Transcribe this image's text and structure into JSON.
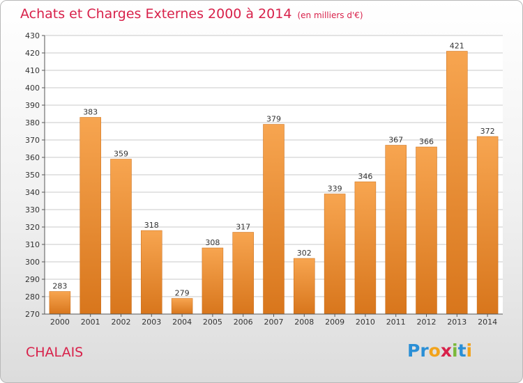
{
  "header": {
    "title": "Achats et Charges Externes 2000 à 2014",
    "subtitle": "(en milliers d'€)"
  },
  "footer": {
    "city": "CHALAIS",
    "logo": {
      "letters": [
        "P",
        "r",
        "o",
        "x",
        "i",
        "t",
        "i"
      ],
      "colors": [
        "#2a8fd6",
        "#2a8fd6",
        "#f2a31b",
        "#d8214a",
        "#7ab83a",
        "#2a8fd6",
        "#f2a31b"
      ]
    }
  },
  "colors": {
    "title": "#d8214a",
    "bar_light": "#f7a550",
    "bar_dark": "#d8761c",
    "grid": "#c8c8c8"
  },
  "chart_data": {
    "type": "bar",
    "title": "Achats et Charges Externes 2000 à 2014",
    "subtitle": "(en milliers d'€)",
    "categories": [
      "2000",
      "2001",
      "2002",
      "2003",
      "2004",
      "2005",
      "2006",
      "2007",
      "2008",
      "2009",
      "2010",
      "2011",
      "2012",
      "2013",
      "2014"
    ],
    "values": [
      283,
      383,
      359,
      318,
      279,
      308,
      317,
      379,
      302,
      339,
      346,
      367,
      366,
      421,
      372
    ],
    "ylim": [
      270,
      430
    ],
    "ytick_step": 10,
    "grid": true,
    "xlabel": "",
    "ylabel": ""
  }
}
